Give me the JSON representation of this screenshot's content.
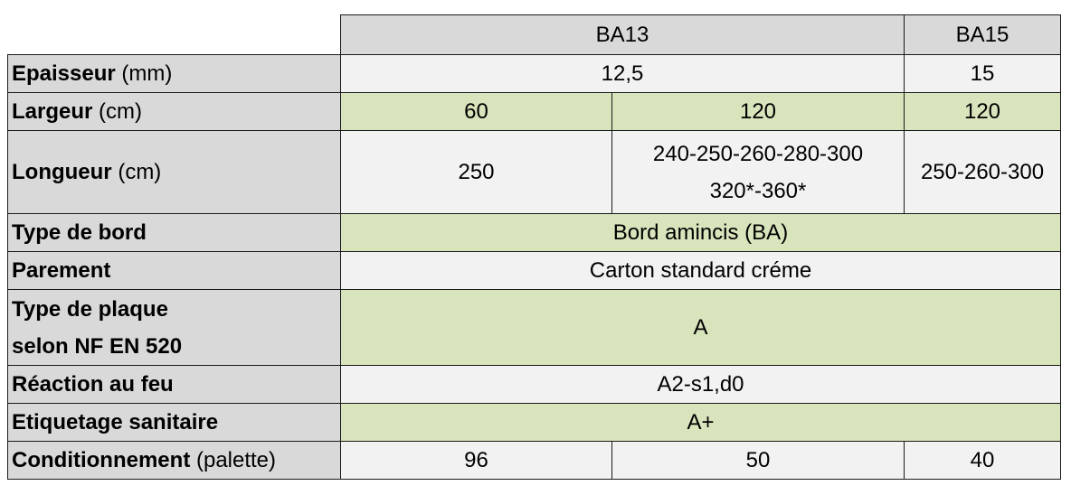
{
  "header": {
    "col_ba13": "BA13",
    "col_ba15": "BA15"
  },
  "rows": [
    {
      "label_bold": "Epaisseur",
      "label_unit": " (mm)",
      "ba13": "12,5",
      "ba15": "15"
    },
    {
      "label_bold": "Largeur",
      "label_unit": " (cm)",
      "ba13_a": "60",
      "ba13_b": "120",
      "ba15": "120"
    },
    {
      "label_bold": "Longueur",
      "label_unit": " (cm)",
      "ba13_a": "250",
      "ba13_b_line1": "240-250-260-280-300",
      "ba13_b_line2": "320*-360*",
      "ba15": "250-260-300"
    },
    {
      "label_bold": "Type de bord",
      "value": "Bord amincis (BA)"
    },
    {
      "label_bold": "Parement",
      "value": "Carton standard créme"
    },
    {
      "label_bold_line1": "Type de plaque",
      "label_bold_line2": "selon NF EN 520",
      "value": "A"
    },
    {
      "label_bold": "Réaction au feu",
      "value": "A2-s1,d0"
    },
    {
      "label_bold": "Etiquetage sanitaire",
      "value": "A+"
    },
    {
      "label_bold": "Conditionnement",
      "label_unit": " (palette)",
      "ba13_a": "96",
      "ba13_b": "50",
      "ba15": "40"
    }
  ],
  "colors": {
    "label_bg": "#d9d9d9",
    "green_bg": "#d8e4bc",
    "light_bg": "#f2f2f2",
    "border": "#1a1a1a"
  }
}
